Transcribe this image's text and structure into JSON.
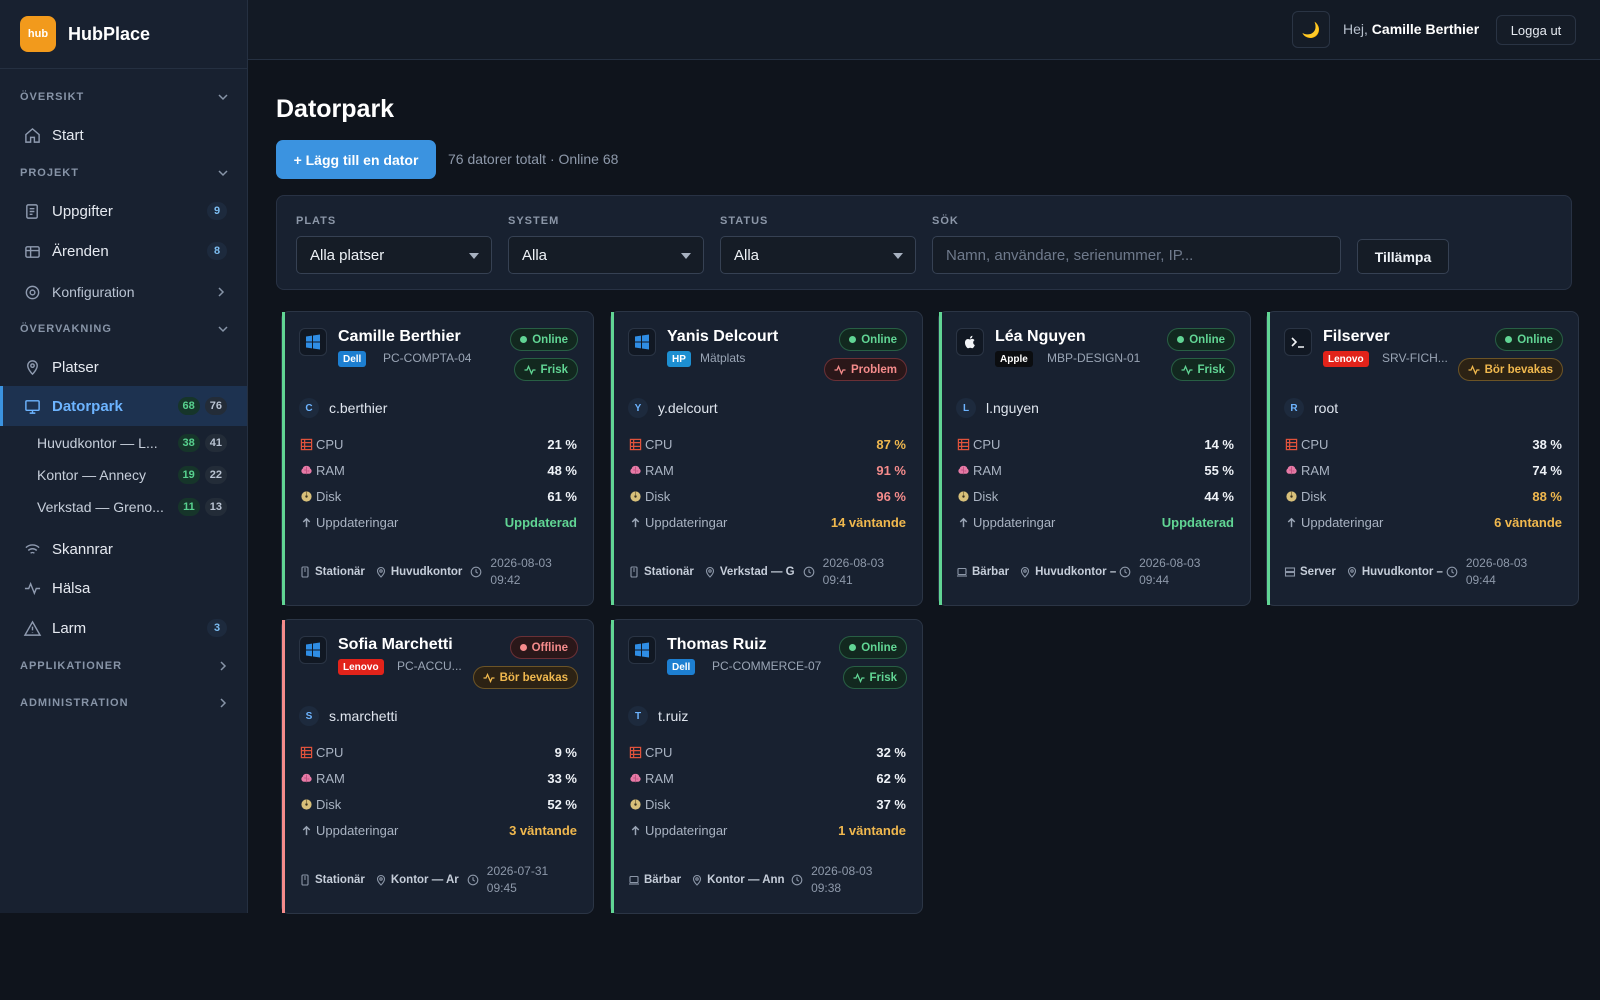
{
  "brand": {
    "logo_text": "hub",
    "name": "HubPlace",
    "accent": "#f29a1c"
  },
  "sidebar": {
    "sections": [
      {
        "label": "ÖVERSIKT"
      },
      {
        "label": "PROJEKT"
      },
      {
        "label": "ÖVERVAKNING"
      },
      {
        "label": "APPLIKATIONER"
      },
      {
        "label": "ADMINISTRATION"
      }
    ],
    "items": [
      {
        "label": "Start",
        "icon": "home-icon"
      },
      {
        "label": "Uppgifter",
        "icon": "tasks-icon",
        "badge": "9"
      },
      {
        "label": "Ärenden",
        "icon": "tickets-icon",
        "badge": "8"
      },
      {
        "label": "Konfiguration",
        "icon": "gear-icon"
      },
      {
        "label": "Platser",
        "icon": "pin-icon"
      },
      {
        "label": "Datorpark",
        "icon": "monitor-icon",
        "badge_online": "68",
        "badge_total": "76"
      },
      {
        "label": "Skannrar",
        "icon": "wifi-icon"
      },
      {
        "label": "Hälsa",
        "icon": "pulse-icon"
      },
      {
        "label": "Larm",
        "icon": "alert-icon",
        "badge": "3"
      }
    ],
    "subitems": [
      {
        "label": "Huvudkontor — L...",
        "online": "38",
        "total": "41"
      },
      {
        "label": "Kontor — Annecy",
        "online": "19",
        "total": "22"
      },
      {
        "label": "Verkstad — Greno...",
        "online": "11",
        "total": "13"
      }
    ]
  },
  "topbar": {
    "theme_icon": "🌙",
    "greeting": "Hej,",
    "user": "Camille Berthier",
    "logout": "Logga ut"
  },
  "page": {
    "title": "Datorpark",
    "add_button": "+ Lägg till en dator",
    "summary": "76 datorer totalt · Online 68"
  },
  "filters": {
    "place_label": "PLATS",
    "place_value": "Alla platser",
    "system_label": "SYSTEM",
    "system_value": "Alla",
    "status_label": "STATUS",
    "status_value": "Alla",
    "search_label": "SÖK",
    "search_placeholder": "Namn, användare, serienummer, IP...",
    "apply": "Tillämpa"
  },
  "metric_labels": {
    "cpu": "CPU",
    "ram": "RAM",
    "disk": "Disk",
    "updates": "Uppdateringar"
  },
  "colors": {
    "online": "#61d594",
    "offline": "#f48b8b",
    "warning": "#f0b84e",
    "primary": "#3b93e0"
  },
  "computers": [
    {
      "name": "Camille Berthier",
      "os": "windows",
      "vendor": "Dell",
      "vendor_color": "#1d7fd1",
      "model": "PC-COMPTA-04",
      "status": "Online",
      "health": "Frisk",
      "health_level": "ok",
      "avatar": "C",
      "user": "c.berthier",
      "cpu": "21 %",
      "cpu_level": "",
      "ram": "48 %",
      "ram_level": "",
      "disk": "61 %",
      "disk_level": "",
      "updates": "Uppdaterad",
      "updates_level": "ok",
      "type": "Stationär",
      "type_icon": "desktop-icon",
      "location": "Huvudkontor",
      "date": "2026-08-03",
      "time": "09:42"
    },
    {
      "name": "Yanis Delcourt",
      "os": "windows",
      "vendor": "HP",
      "vendor_color": "#1d8fd1",
      "model": "Mätplats",
      "status": "Online",
      "health": "Problem",
      "health_level": "bad",
      "avatar": "Y",
      "user": "y.delcourt",
      "cpu": "87 %",
      "cpu_level": "warn",
      "ram": "91 %",
      "ram_level": "bad",
      "disk": "96 %",
      "disk_level": "bad",
      "updates": "14 väntande",
      "updates_level": "warn",
      "type": "Stationär",
      "type_icon": "desktop-icon",
      "location": "Verkstad — G",
      "date": "2026-08-03",
      "time": "09:41"
    },
    {
      "name": "Léa Nguyen",
      "os": "apple",
      "vendor": "Apple",
      "vendor_color": "#0b0d10",
      "model": "MBP-DESIGN-01",
      "status": "Online",
      "health": "Frisk",
      "health_level": "ok",
      "avatar": "L",
      "user": "l.nguyen",
      "cpu": "14 %",
      "cpu_level": "",
      "ram": "55 %",
      "ram_level": "",
      "disk": "44 %",
      "disk_level": "",
      "updates": "Uppdaterad",
      "updates_level": "ok",
      "type": "Bärbar",
      "type_icon": "laptop-icon",
      "location": "Huvudkontor –",
      "date": "2026-08-03",
      "time": "09:44"
    },
    {
      "name": "Filserver",
      "os": "linux",
      "vendor": "Lenovo",
      "vendor_color": "#e2231a",
      "model": "SRV-FICH...",
      "status": "Online",
      "health": "Bör bevakas",
      "health_level": "warn",
      "avatar": "R",
      "user": "root",
      "cpu": "38 %",
      "cpu_level": "",
      "ram": "74 %",
      "ram_level": "",
      "disk": "88 %",
      "disk_level": "warn",
      "updates": "6 väntande",
      "updates_level": "warn",
      "type": "Server",
      "type_icon": "server-icon",
      "location": "Huvudkontor –",
      "date": "2026-08-03",
      "time": "09:44"
    },
    {
      "name": "Sofia Marchetti",
      "os": "windows",
      "vendor": "Lenovo",
      "vendor_color": "#e2231a",
      "model": "PC-ACCU...",
      "status": "Offline",
      "health": "Bör bevakas",
      "health_level": "warn",
      "avatar": "S",
      "user": "s.marchetti",
      "cpu": "9 %",
      "cpu_level": "",
      "ram": "33 %",
      "ram_level": "",
      "disk": "52 %",
      "disk_level": "",
      "updates": "3 väntande",
      "updates_level": "warn",
      "type": "Stationär",
      "type_icon": "desktop-icon",
      "location": "Kontor — Ar",
      "date": "2026-07-31",
      "time": "09:45"
    },
    {
      "name": "Thomas Ruiz",
      "os": "windows",
      "vendor": "Dell",
      "vendor_color": "#1d7fd1",
      "model": "PC-COMMERCE-07",
      "status": "Online",
      "health": "Frisk",
      "health_level": "ok",
      "avatar": "T",
      "user": "t.ruiz",
      "cpu": "32 %",
      "cpu_level": "",
      "ram": "62 %",
      "ram_level": "",
      "disk": "37 %",
      "disk_level": "",
      "updates": "1 väntande",
      "updates_level": "warn",
      "type": "Bärbar",
      "type_icon": "laptop-icon",
      "location": "Kontor — Ann",
      "date": "2026-08-03",
      "time": "09:38"
    }
  ]
}
